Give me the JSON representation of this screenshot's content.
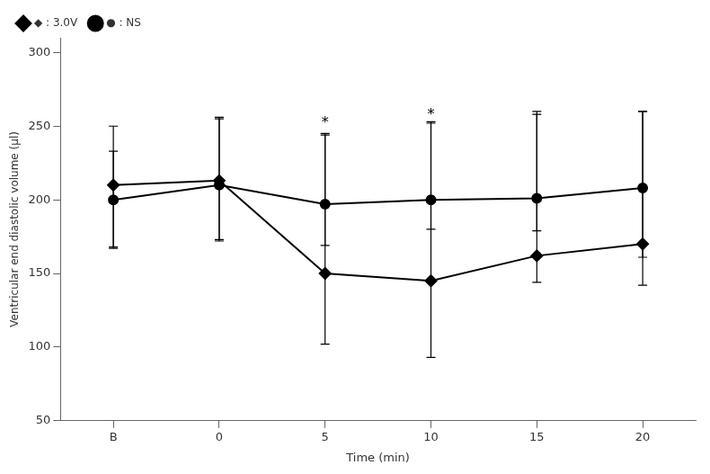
{
  "chart_data": {
    "type": "line",
    "categories": [
      "B",
      "0",
      "5",
      "10",
      "15",
      "20"
    ],
    "series": [
      {
        "name": "◆ : 3.0V",
        "color": "#000000",
        "marker": "diamond",
        "line_style": "solid",
        "values": [
          210,
          213,
          150,
          145,
          162,
          170
        ],
        "yerr_upper": [
          40,
          43,
          95,
          108,
          98,
          90
        ],
        "yerr_lower": [
          42,
          40,
          48,
          52,
          18,
          28
        ]
      },
      {
        "name": "● : NS",
        "color": "#000000",
        "marker": "circle",
        "line_style": "solid",
        "values": [
          200,
          210,
          197,
          200,
          201,
          208
        ],
        "yerr_upper": [
          33,
          45,
          47,
          52,
          57,
          52
        ],
        "yerr_lower": [
          33,
          38,
          28,
          20,
          22,
          47
        ]
      }
    ],
    "annotations": [
      {
        "x": "5",
        "y": 247,
        "text": "*"
      },
      {
        "x": "10",
        "y": 253,
        "text": "*"
      }
    ],
    "xlabel": "Time (min)",
    "ylabel": "Ventricular end diastolic volume (μl)",
    "ylim": [
      50,
      310
    ],
    "yticks": [
      50,
      100,
      150,
      200,
      250,
      300
    ],
    "grid": false,
    "legend": "upper left"
  }
}
